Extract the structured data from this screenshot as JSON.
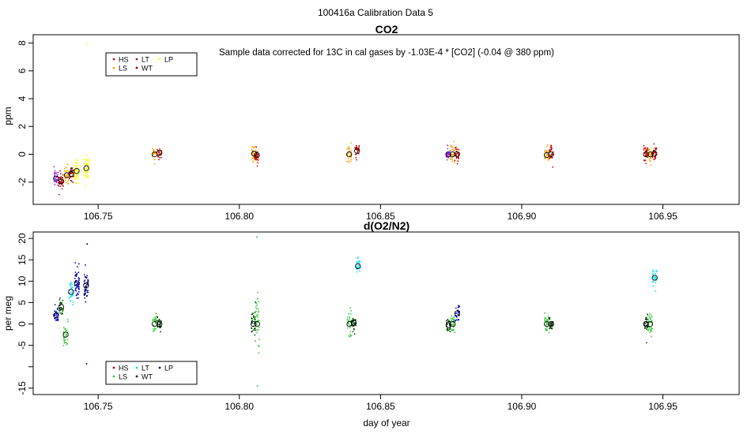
{
  "page_title": "100416a   Calibration Data 5",
  "chart_data": [
    {
      "id": "co2",
      "type": "scatter",
      "title": "CO2",
      "ylabel": "ppm",
      "xlabel": "",
      "note": "Sample data corrected for 13C in cal gases by -1.03E-4 * [CO2] (-0.04 @ 380 ppm)",
      "xlim": [
        106.727,
        106.977
      ],
      "ylim": [
        -3.6,
        8.6
      ],
      "xticks": [
        106.75,
        106.8,
        106.85,
        106.9,
        106.95
      ],
      "xtick_labels": [
        "106.75",
        "106.80",
        "106.85",
        "106.90",
        "106.95"
      ],
      "yticks": [
        -2,
        0,
        2,
        4,
        6,
        8
      ],
      "ytick_labels": [
        "-2",
        "0",
        "2",
        "4",
        "6",
        "8"
      ],
      "legend": [
        {
          "name": "HS",
          "color": "#cc0000"
        },
        {
          "name": "LT",
          "color": "#8b2020"
        },
        {
          "name": "LP",
          "color": "#ffff00"
        },
        {
          "name": "LS",
          "color": "#ffa500"
        },
        {
          "name": "WT",
          "color": "#8b0000"
        }
      ],
      "clusters": [
        {
          "series": "LT",
          "color": "#a020f0",
          "x": 106.7351,
          "y": -1.75,
          "spread": 0.55,
          "n": 30
        },
        {
          "series": "HS",
          "color": "#cc0000",
          "x": 106.7369,
          "y": -1.95,
          "spread": 0.65,
          "n": 34
        },
        {
          "series": "LS",
          "color": "#ffa500",
          "x": 106.7389,
          "y": -1.5,
          "spread": 0.6,
          "n": 32
        },
        {
          "series": "WT",
          "color": "#8b0000",
          "x": 106.7405,
          "y": -1.4,
          "spread": 0.6,
          "n": 32
        },
        {
          "series": "LP",
          "color": "#ffff00",
          "x": 106.7424,
          "y": -1.2,
          "spread": 0.8,
          "n": 48
        },
        {
          "series": "LP",
          "color": "#ffff00",
          "x": 106.7458,
          "y": -1.0,
          "spread": 0.85,
          "n": 48
        },
        {
          "series": "LS",
          "color": "#ffa500",
          "x": 106.77,
          "y": 0.0,
          "spread": 0.45,
          "n": 26
        },
        {
          "series": "HS",
          "color": "#cc0000",
          "x": 106.7717,
          "y": 0.1,
          "spread": 0.35,
          "n": 24
        },
        {
          "series": "LS",
          "color": "#ffa500",
          "x": 106.8052,
          "y": 0.05,
          "spread": 0.65,
          "n": 30
        },
        {
          "series": "HS",
          "color": "#cc0000",
          "x": 106.8062,
          "y": -0.05,
          "spread": 0.6,
          "n": 30
        },
        {
          "series": "LS",
          "color": "#ffa500",
          "x": 106.8389,
          "y": 0.0,
          "spread": 0.55,
          "n": 30
        },
        {
          "series": "HS",
          "color": "#cc0000",
          "x": 106.8417,
          "y": 0.25,
          "spread": 0.5,
          "n": 28
        },
        {
          "series": "LT",
          "color": "#a020f0",
          "x": 106.874,
          "y": 0.0,
          "spread": 0.5,
          "n": 28
        },
        {
          "series": "LS",
          "color": "#ffa500",
          "x": 106.8755,
          "y": 0.0,
          "spread": 0.6,
          "n": 30
        },
        {
          "series": "HS",
          "color": "#cc0000",
          "x": 106.8771,
          "y": 0.0,
          "spread": 0.5,
          "n": 28
        },
        {
          "series": "LS",
          "color": "#ffa500",
          "x": 106.9089,
          "y": -0.05,
          "spread": 0.6,
          "n": 28
        },
        {
          "series": "HS",
          "color": "#cc0000",
          "x": 106.9104,
          "y": 0.0,
          "spread": 0.5,
          "n": 28
        },
        {
          "series": "HS",
          "color": "#cc0000",
          "x": 106.944,
          "y": 0.0,
          "spread": 0.55,
          "n": 30
        },
        {
          "series": "LS",
          "color": "#ffa500",
          "x": 106.9456,
          "y": 0.0,
          "spread": 0.55,
          "n": 30
        },
        {
          "series": "HS",
          "color": "#cc0000",
          "x": 106.947,
          "y": 0.05,
          "spread": 0.5,
          "n": 28
        }
      ],
      "outliers": [
        {
          "x": 106.7459,
          "y": 7.9,
          "color": "#ffff00"
        }
      ]
    },
    {
      "id": "o2n2",
      "type": "scatter",
      "title": "d(O2/N2)",
      "ylabel": "per meg",
      "xlabel": "day of year",
      "xlim": [
        106.727,
        106.977
      ],
      "ylim": [
        -16.5,
        21.5
      ],
      "xticks": [
        106.75,
        106.8,
        106.85,
        106.9,
        106.95
      ],
      "xtick_labels": [
        "106.75",
        "106.80",
        "106.85",
        "106.90",
        "106.95"
      ],
      "yticks": [
        -15,
        -10,
        -5,
        0,
        5,
        10,
        15,
        20
      ],
      "ytick_labels": [
        "-15",
        "",
        "-5",
        "0",
        "5",
        "10",
        "15",
        "20"
      ],
      "legend": [
        {
          "name": "HS",
          "color": "#cc0000"
        },
        {
          "name": "LT",
          "color": "#00e5ee"
        },
        {
          "name": "LP",
          "color": "#00008b"
        },
        {
          "name": "LS",
          "color": "#32cd32"
        },
        {
          "name": "WT",
          "color": "#003300"
        }
      ],
      "clusters": [
        {
          "series": "LP",
          "color": "#0000cd",
          "x": 106.7351,
          "y": 2.0,
          "spread": 1.8,
          "n": 30
        },
        {
          "series": "WT",
          "color": "#006400",
          "x": 106.7369,
          "y": 4.0,
          "spread": 2.0,
          "n": 30
        },
        {
          "series": "LS",
          "color": "#32cd32",
          "x": 106.7385,
          "y": -2.5,
          "spread": 2.5,
          "n": 30
        },
        {
          "series": "LT",
          "color": "#00e5ee",
          "x": 106.7404,
          "y": 7.5,
          "spread": 2.6,
          "n": 32
        },
        {
          "series": "LP",
          "color": "#0000cd",
          "x": 106.7425,
          "y": 9.5,
          "spread": 3.2,
          "n": 48
        },
        {
          "series": "LP",
          "color": "#00008b",
          "x": 106.7457,
          "y": 9.0,
          "spread": 3.5,
          "n": 48
        },
        {
          "series": "LS",
          "color": "#32cd32",
          "x": 106.77,
          "y": 0.0,
          "spread": 2.2,
          "n": 28
        },
        {
          "series": "WT",
          "color": "#003300",
          "x": 106.7717,
          "y": 0.0,
          "spread": 1.6,
          "n": 26
        },
        {
          "series": "WT",
          "color": "#003300",
          "x": 106.805,
          "y": 0.0,
          "spread": 3.0,
          "n": 30
        },
        {
          "series": "LS",
          "color": "#32cd32",
          "x": 106.8063,
          "y": 0.0,
          "spread": 5.5,
          "n": 40
        },
        {
          "series": "LS",
          "color": "#32cd32",
          "x": 106.839,
          "y": 0.0,
          "spread": 2.8,
          "n": 30
        },
        {
          "series": "WT",
          "color": "#003300",
          "x": 106.8405,
          "y": 0.3,
          "spread": 1.8,
          "n": 28
        },
        {
          "series": "LT",
          "color": "#00e5ee",
          "x": 106.842,
          "y": 13.5,
          "spread": 1.5,
          "n": 26
        },
        {
          "series": "WT",
          "color": "#003300",
          "x": 106.8741,
          "y": -0.3,
          "spread": 1.4,
          "n": 26
        },
        {
          "series": "LS",
          "color": "#32cd32",
          "x": 106.8756,
          "y": 0.0,
          "spread": 1.8,
          "n": 28
        },
        {
          "series": "LP",
          "color": "#0000cd",
          "x": 106.8772,
          "y": 2.5,
          "spread": 2.0,
          "n": 28
        },
        {
          "series": "LS",
          "color": "#32cd32",
          "x": 106.9089,
          "y": 0.0,
          "spread": 1.6,
          "n": 28
        },
        {
          "series": "WT",
          "color": "#003300",
          "x": 106.9104,
          "y": 0.0,
          "spread": 1.3,
          "n": 26
        },
        {
          "series": "WT",
          "color": "#003300",
          "x": 106.944,
          "y": 0.0,
          "spread": 1.8,
          "n": 28
        },
        {
          "series": "LS",
          "color": "#32cd32",
          "x": 106.9455,
          "y": 0.0,
          "spread": 2.8,
          "n": 30
        },
        {
          "series": "LT",
          "color": "#00e5ee",
          "x": 106.9471,
          "y": 10.8,
          "spread": 1.8,
          "n": 28
        }
      ],
      "outliers": [
        {
          "x": 106.7459,
          "y": -9.3,
          "color": "#00008b"
        },
        {
          "x": 106.7461,
          "y": 18.7,
          "color": "#00008b"
        },
        {
          "x": 106.8063,
          "y": 20.3,
          "color": "#32cd32"
        },
        {
          "x": 106.8064,
          "y": -14.5,
          "color": "#32cd32"
        }
      ]
    }
  ]
}
